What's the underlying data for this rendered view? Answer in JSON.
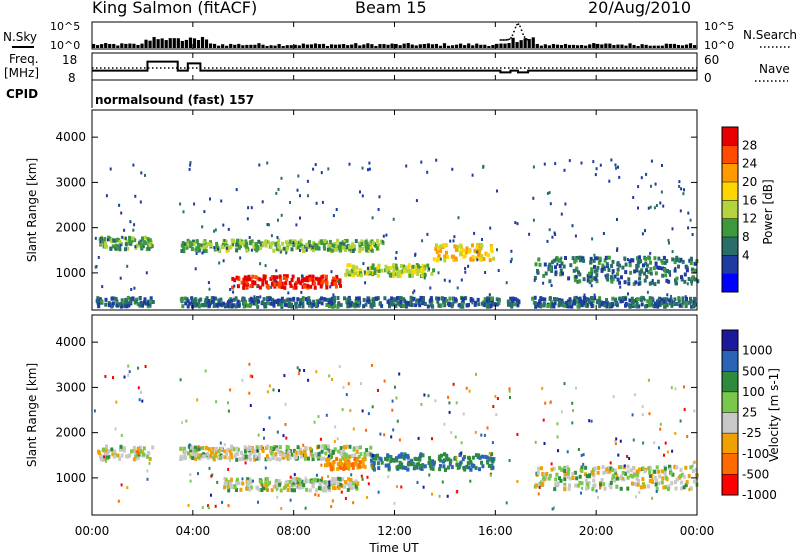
{
  "header": {
    "radar": "King Salmon (fitACF)",
    "beam": "Beam 15",
    "date": "20/Aug/2010"
  },
  "top_panels": {
    "nsky_label": "N.Sky",
    "nsearch_label": "N.Search",
    "freq_label_1": "Freq.",
    "freq_label_2": "[MHz]",
    "nave_label": "Nave",
    "cpid_label": "CPID",
    "cpid_text": "normalsound (fast) 157",
    "noise_ticks_left": [
      "10^5",
      "10^0"
    ],
    "noise_ticks_right": [
      "10^5",
      "10^0"
    ],
    "freq_ticks": [
      "18",
      "8"
    ],
    "nave_ticks": [
      "60",
      "0"
    ]
  },
  "power_panel": {
    "ylabel": "Slant Range [km]",
    "yticks": [
      "4000",
      "3000",
      "2000",
      "1000"
    ],
    "colorbar_label": "Power [dB]",
    "colorbar_ticks": [
      "28",
      "24",
      "20",
      "16",
      "12",
      "8",
      "4"
    ],
    "colors": [
      "#e60000",
      "#ff4b00",
      "#ff9a00",
      "#ffd700",
      "#b5d33c",
      "#3c9a3c",
      "#2a6e6a",
      "#1e3ca0",
      "#0000ff"
    ]
  },
  "velocity_panel": {
    "ylabel": "Slant Range [km]",
    "yticks": [
      "4000",
      "3000",
      "2000",
      "1000"
    ],
    "colorbar_label": "Velocity [m s-1]",
    "colorbar_ticks": [
      "1000",
      "500",
      "100",
      "25",
      "-25",
      "-100",
      "-500",
      "-1000"
    ],
    "colors": [
      "#1a1a9a",
      "#2a64b4",
      "#2e8a3c",
      "#7ac84a",
      "#c8c8c8",
      "#f0a000",
      "#ff6a00",
      "#ff0000"
    ]
  },
  "x_axis": {
    "label": "Time UT",
    "ticks": [
      "00:00",
      "04:00",
      "08:00",
      "12:00",
      "16:00",
      "20:00",
      "00:00"
    ]
  },
  "chart_data": {
    "type": "heatmap",
    "title": "King Salmon (fitACF) Beam 15 20/Aug/2010",
    "xlabel": "Time UT",
    "ylabel": "Slant Range [km]",
    "xlim": [
      0,
      24
    ],
    "ylim": [
      180,
      4600
    ],
    "frequency_mhz": {
      "x": [
        0,
        2.2,
        2.2,
        3.4,
        3.4,
        3.8,
        3.8,
        4.3,
        4.3,
        16.2,
        16.2,
        16.6,
        16.6,
        16.9,
        16.9,
        17.3,
        17.3,
        24
      ],
      "y": [
        11,
        11,
        16,
        16,
        11,
        11,
        15,
        15,
        11,
        11,
        10,
        10,
        11,
        11,
        10,
        10,
        11,
        11
      ]
    },
    "power_db_bands": [
      {
        "t_start": 0.2,
        "t_end": 2.8,
        "range_km": 1650,
        "width_km": 260,
        "power_db": 10
      },
      {
        "t_start": 3.5,
        "t_end": 11.5,
        "range_km": 1600,
        "width_km": 240,
        "power_db": 12
      },
      {
        "t_start": 5.5,
        "t_end": 9.8,
        "range_km": 800,
        "width_km": 260,
        "power_db": 28
      },
      {
        "t_start": 10.0,
        "t_end": 13.5,
        "range_km": 1050,
        "width_km": 250,
        "power_db": 14
      },
      {
        "t_start": 13.5,
        "t_end": 15.9,
        "range_km": 1450,
        "width_km": 350,
        "power_db": 18
      },
      {
        "t_start": 17.5,
        "t_end": 24.0,
        "range_km": 1050,
        "width_km": 600,
        "power_db": 7
      },
      {
        "t_start": 0.1,
        "t_end": 23.9,
        "range_km": 350,
        "width_km": 200,
        "power_db": 6
      }
    ],
    "velocity_bands": [
      {
        "t_start": 0.2,
        "t_end": 11.0,
        "range_km": 1550,
        "width_km": 300,
        "velocity": 0
      },
      {
        "t_start": 5.2,
        "t_end": 10.5,
        "range_km": 850,
        "width_km": 260,
        "velocity": 0
      },
      {
        "t_start": 9.2,
        "t_end": 10.8,
        "range_km": 1300,
        "width_km": 250,
        "velocity": -100
      },
      {
        "t_start": 11.0,
        "t_end": 15.9,
        "range_km": 1350,
        "width_km": 350,
        "velocity": 100
      },
      {
        "t_start": 17.5,
        "t_end": 24.0,
        "range_km": 1000,
        "width_km": 500,
        "velocity": 0
      }
    ]
  }
}
